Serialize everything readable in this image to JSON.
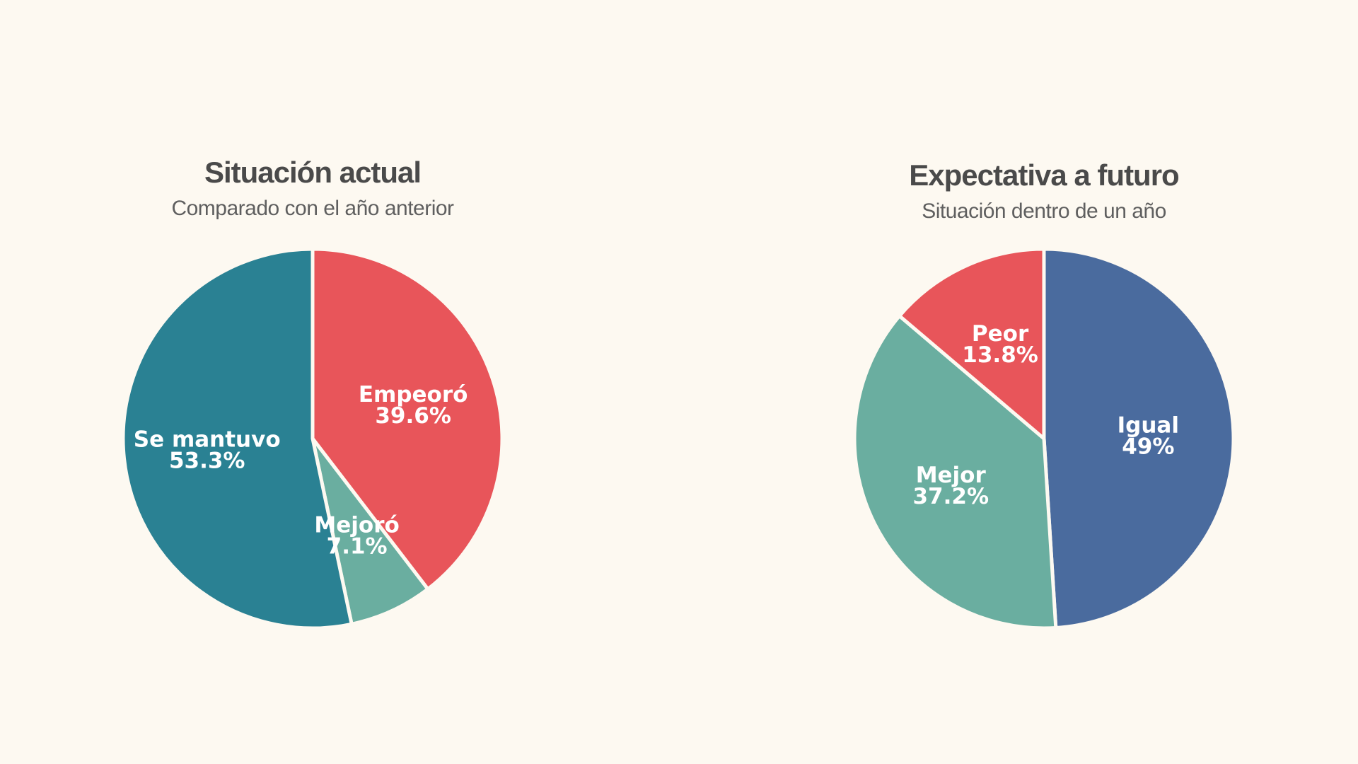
{
  "chart_data": [
    {
      "type": "pie",
      "title": "Situación actual",
      "subtitle": "Comparado con el año anterior",
      "slices": [
        {
          "label": "Empeoró",
          "value": 39.6,
          "display": "39.6%",
          "color": "#e8555a"
        },
        {
          "label": "Mejoró",
          "value": 7.1,
          "display": "7.1%",
          "color": "#6aaea0"
        },
        {
          "label": "Se mantuvo",
          "value": 53.3,
          "display": "53.3%",
          "color": "#2a8193"
        }
      ]
    },
    {
      "type": "pie",
      "title": "Expectativa a futuro",
      "subtitle": "Situación dentro de un año",
      "slices": [
        {
          "label": "Igual",
          "value": 49,
          "display": "49%",
          "color": "#4a6b9e"
        },
        {
          "label": "Mejor",
          "value": 37.2,
          "display": "37.2%",
          "color": "#6aaea0"
        },
        {
          "label": "Peor",
          "value": 13.8,
          "display": "13.8%",
          "color": "#e8555a"
        }
      ]
    }
  ]
}
